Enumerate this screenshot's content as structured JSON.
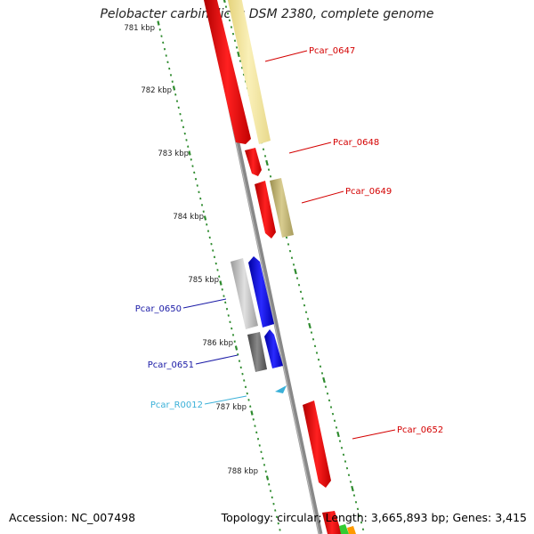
{
  "title": "Pelobacter carbinolicus DSM 2380, complete genome",
  "footer": {
    "accession": "Accession: NC_007498",
    "topology": "Topology: circular; Length: 3,665,893 bp; Genes: 3,415"
  },
  "ruler": {
    "labels": [
      "781 kbp",
      "782 kbp",
      "783 kbp",
      "784 kbp",
      "785 kbp",
      "786 kbp",
      "787 kbp",
      "788 kbp"
    ],
    "tick_color": "#2e8b2e"
  },
  "gene_labels": [
    {
      "id": "Pcar_0647",
      "color": "#d40000"
    },
    {
      "id": "Pcar_0648",
      "color": "#d40000"
    },
    {
      "id": "Pcar_0649",
      "color": "#d40000"
    },
    {
      "id": "Pcar_0650",
      "color": "#1a1aa6"
    },
    {
      "id": "Pcar_0651",
      "color": "#1a1aa6"
    },
    {
      "id": "Pcar_R0012",
      "color": "#3ab0d8"
    },
    {
      "id": "Pcar_0652",
      "color": "#d40000"
    }
  ],
  "colors": {
    "backbone": "#8c8c8c",
    "cds": "#ee1111",
    "cds_pale": "#f2e6a0",
    "cds_olive": "#c4b87a",
    "reverse_cds": "#1010e0",
    "grey_feature": "#b8b8b8",
    "dark_feature": "#6a6a6a",
    "rna": "#3ab0d8"
  }
}
